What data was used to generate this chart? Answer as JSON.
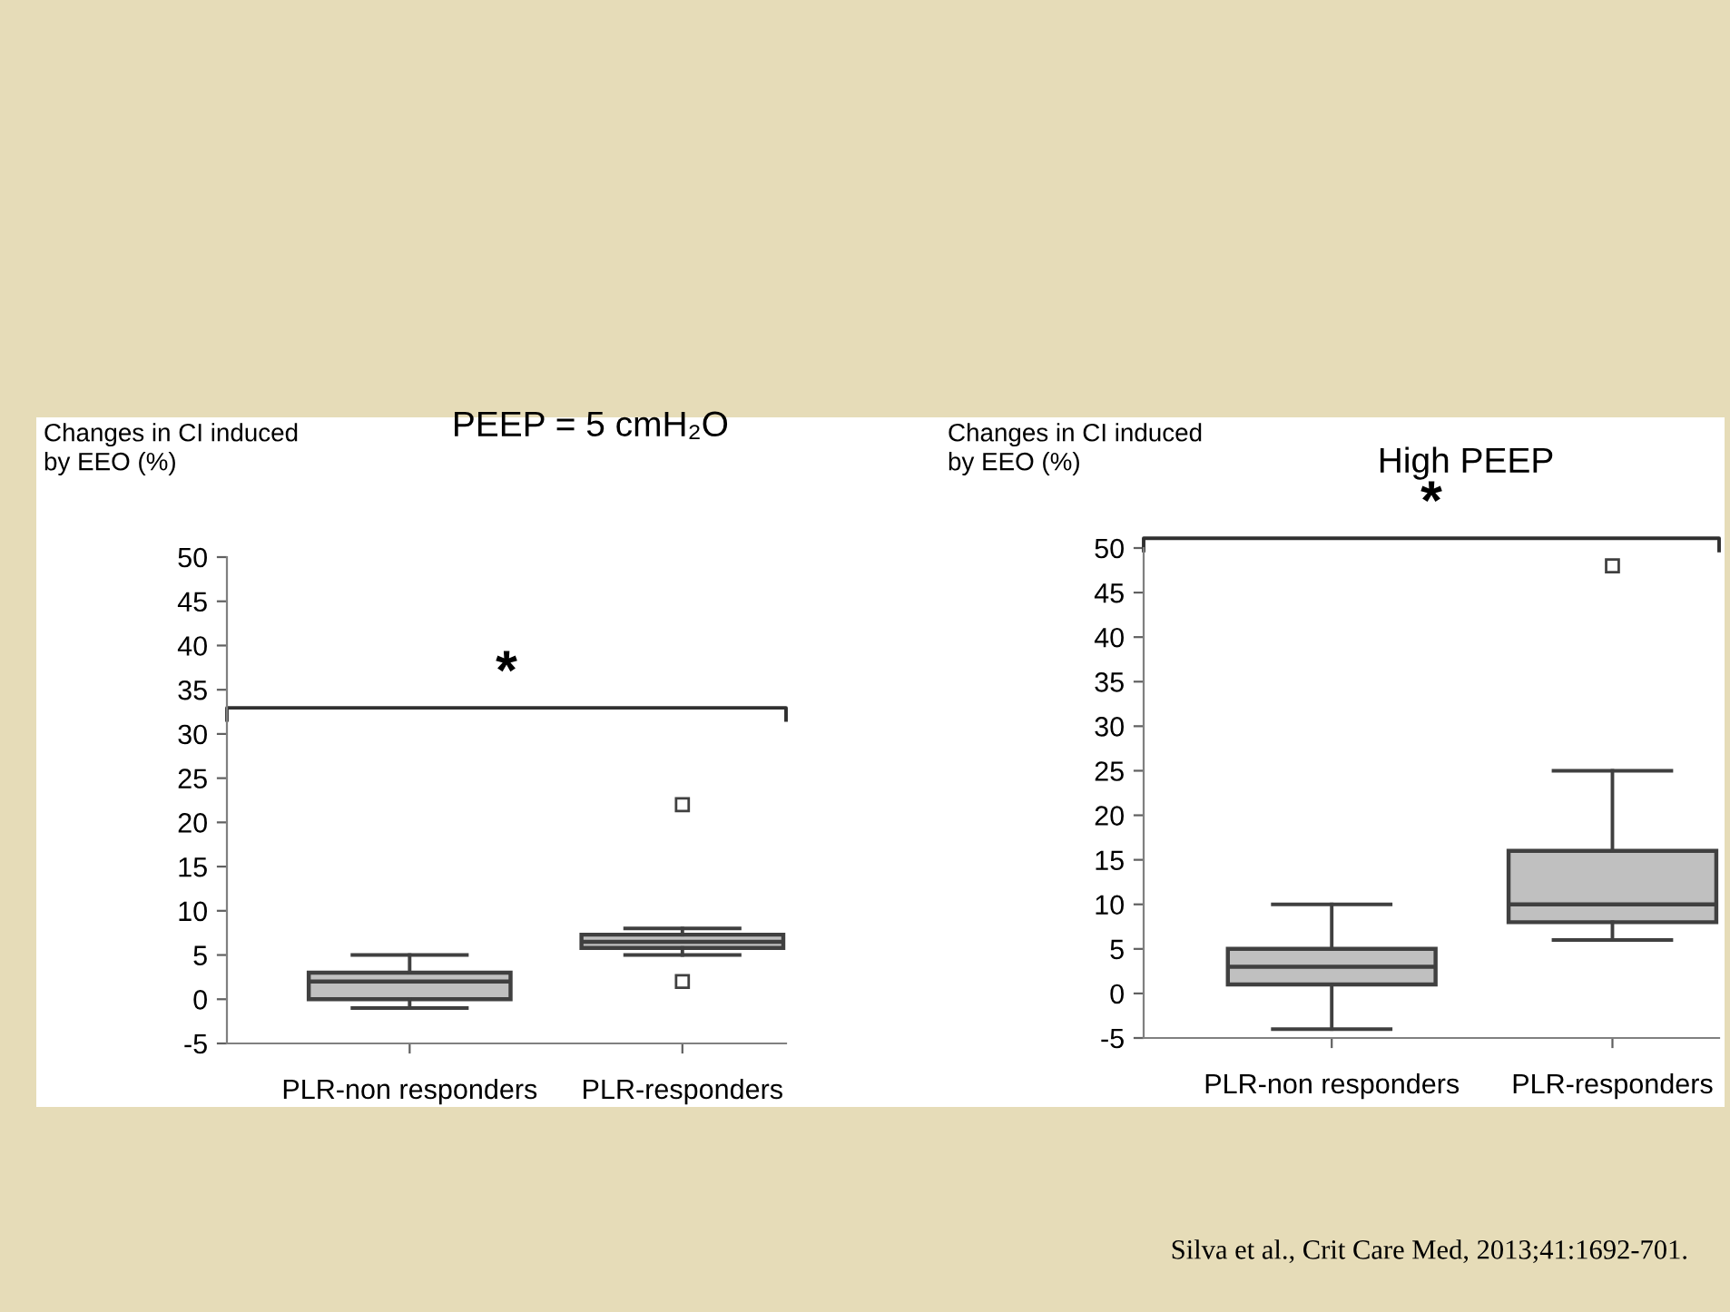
{
  "chart_data": [
    {
      "type": "box",
      "title": "PEEP = 5 cmH₂O",
      "ylabel": "Changes in CI induced\nby EEO (%)",
      "categories": [
        "PLR-non responders",
        "PLR-responders"
      ],
      "color": "#c0c0c0",
      "marker": "square",
      "grid": false,
      "legend": false,
      "ylim": [
        -5,
        50
      ],
      "yticks": [
        -5,
        0,
        5,
        10,
        15,
        20,
        25,
        30,
        35,
        40,
        45,
        50
      ],
      "boxes": [
        {
          "low": -1,
          "q1": 0,
          "median": 2,
          "q3": 3,
          "high": 5
        },
        {
          "low": 5,
          "q1": 5.8,
          "median": 6.5,
          "q3": 7.3,
          "high": 8,
          "outliers": [
            22,
            2
          ]
        }
      ],
      "annotations": [
        "*"
      ]
    },
    {
      "type": "box",
      "title": "High PEEP",
      "ylabel": "Changes in CI induced\nby EEO (%)",
      "categories": [
        "PLR-non responders",
        "PLR-responders"
      ],
      "color": "#c0c0c0",
      "marker": "square",
      "grid": false,
      "legend": false,
      "ylim": [
        -5,
        50
      ],
      "yticks": [
        -5,
        0,
        5,
        10,
        15,
        20,
        25,
        30,
        35,
        40,
        45,
        50
      ],
      "boxes": [
        {
          "low": -4,
          "q1": 1,
          "median": 3,
          "q3": 5,
          "high": 10
        },
        {
          "low": 6,
          "q1": 8,
          "median": 10,
          "q3": 16,
          "high": 25,
          "outliers": [
            48
          ]
        }
      ],
      "annotations": [
        "*",
        "Silva et al., Crit Care Med, 2013;41:1692-701."
      ]
    }
  ]
}
